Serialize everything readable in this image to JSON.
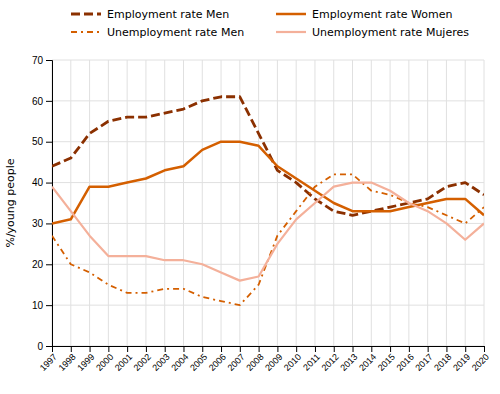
{
  "chart_data": {
    "type": "line",
    "x": [
      1997,
      1998,
      1999,
      2000,
      2001,
      2002,
      2003,
      2004,
      2005,
      2006,
      2007,
      2008,
      2009,
      2010,
      2011,
      2012,
      2013,
      2014,
      2015,
      2016,
      2017,
      2018,
      2019,
      2020
    ],
    "series": [
      {
        "name": "Employment rate Men",
        "color": "#8B3000",
        "line_style": "dashed",
        "values": [
          44,
          46,
          52,
          55,
          56,
          56,
          57,
          58,
          60,
          61,
          61,
          52,
          43,
          40,
          36,
          33,
          32,
          33,
          34,
          35,
          36,
          39,
          40,
          37
        ]
      },
      {
        "name": "Employment rate Women",
        "color": "#D45F00",
        "line_style": "solid",
        "values": [
          30,
          31,
          39,
          39,
          40,
          41,
          43,
          44,
          48,
          50,
          50,
          49,
          44,
          41,
          38,
          35,
          33,
          33,
          33,
          34,
          35,
          36,
          36,
          32
        ]
      },
      {
        "name": "Unemployment rate Men",
        "color": "#D45F00",
        "line_style": "dashdot",
        "values": [
          27,
          20,
          18,
          15,
          13,
          13,
          14,
          14,
          12,
          11,
          10,
          15,
          27,
          33,
          39,
          42,
          42,
          38,
          37,
          35,
          34,
          32,
          30,
          34
        ]
      },
      {
        "name": "Unemployment rate Mujeres",
        "color": "#F4B09A",
        "line_style": "solid",
        "values": [
          39,
          33,
          27,
          22,
          22,
          22,
          21,
          21,
          20,
          18,
          16,
          17,
          25,
          31,
          35,
          39,
          40,
          40,
          38,
          35,
          33,
          30,
          26,
          30
        ]
      }
    ],
    "y_label": "%/young people",
    "xlim": [
      1997,
      2020
    ],
    "xticks": [
      1997,
      1998,
      1999,
      2000,
      2001,
      2002,
      2003,
      2004,
      2005,
      2006,
      2007,
      2008,
      2009,
      2010,
      2011,
      2012,
      2013,
      2014,
      2015,
      2016,
      2017,
      2018,
      2019,
      2020
    ],
    "ylim": [
      0,
      70
    ],
    "yticks": [
      0,
      10,
      20,
      30,
      40,
      50,
      60,
      70
    ],
    "grid": true,
    "legend": "top"
  }
}
